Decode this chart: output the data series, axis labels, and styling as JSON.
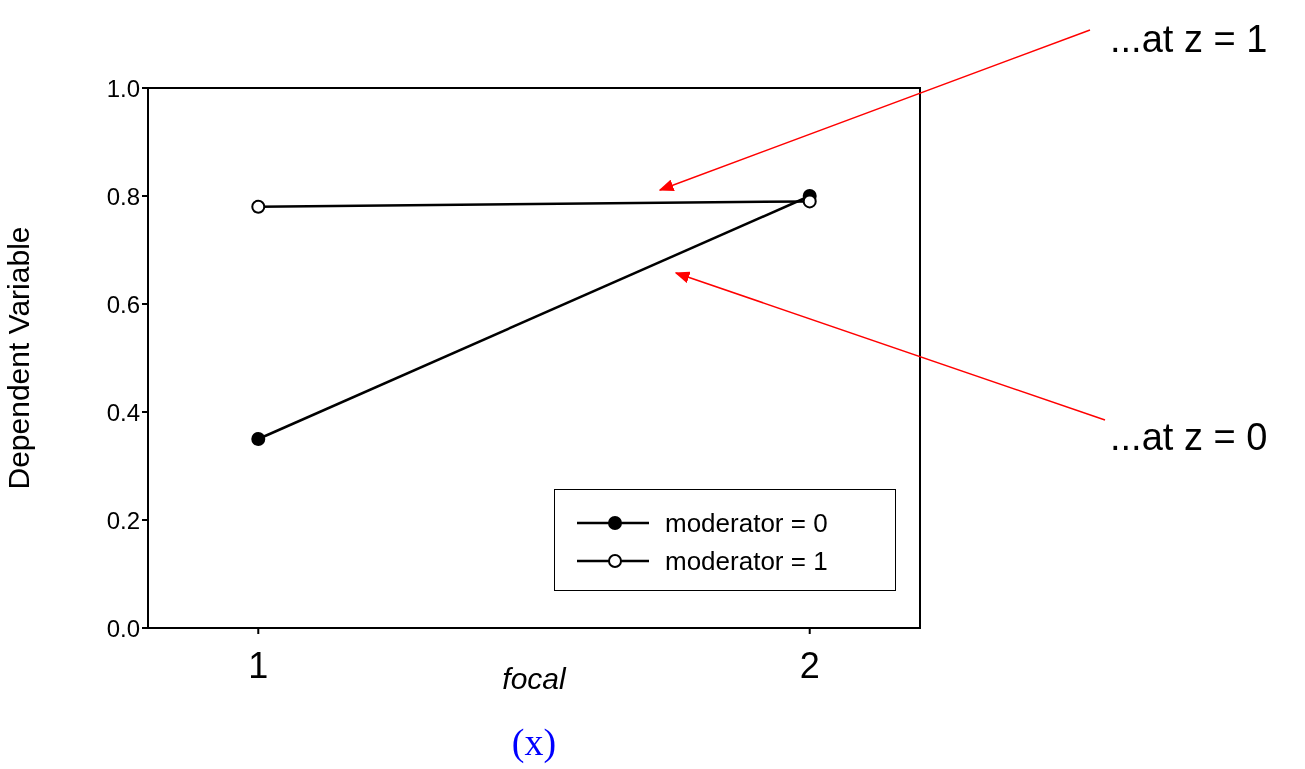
{
  "chart_data": {
    "type": "line",
    "xlabel": "focal",
    "ylabel": "Dependent Variable",
    "x": [
      1,
      2
    ],
    "series": [
      {
        "name": "moderator = 0",
        "color": "#000000",
        "values": [
          0.35,
          0.8
        ]
      },
      {
        "name": "moderator = 1",
        "color": "#000000",
        "values": [
          0.78,
          0.79
        ]
      }
    ],
    "xlim": [
      0.8,
      2.2
    ],
    "xticks": [
      1,
      2
    ],
    "ylim": [
      0,
      1
    ],
    "yticks": [
      {
        "value": 0,
        "label": "0.0"
      },
      0.2,
      0.4,
      0.6,
      0.8,
      {
        "value": 1,
        "label": "1.0"
      }
    ],
    "grid": false,
    "legend": "bottom right",
    "marker": "circle",
    "line_style": "solid",
    "annotations": [
      "...at z = 1",
      "...at z = 0",
      "(x)"
    ]
  }
}
